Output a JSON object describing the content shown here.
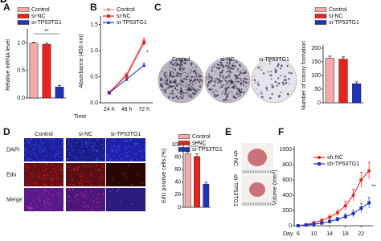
{
  "chart_data": [
    {
      "panel": "A",
      "type": "bar",
      "ylabel": "Relative mRNA level",
      "annotation": "**",
      "ylim": [
        0,
        1.2
      ],
      "yticks": [
        {
          "value": 0,
          "label": "0.0"
        },
        0.5,
        {
          "value": 1,
          "label": "1.0"
        }
      ],
      "series": [
        {
          "name": "Control",
          "color": "#f5a9a9",
          "values": [
            1.0
          ],
          "errors": [
            0.02
          ]
        },
        {
          "name": "si-NC",
          "color": "#e8231e",
          "values": [
            0.98
          ],
          "errors": [
            0.02
          ]
        },
        {
          "name": "si-TP53TG1",
          "color": "#2233bb",
          "values": [
            0.2
          ],
          "errors": [
            0.03
          ]
        }
      ]
    },
    {
      "panel": "B",
      "type": "line",
      "ylabel": "Absorbance (450 nm)",
      "xlabel": "Time",
      "annotation": "*",
      "categories": [
        "24 h",
        "48 h",
        "72 h"
      ],
      "ylim": [
        0,
        1.6
      ],
      "yticks": [
        {
          "value": 0,
          "label": "0.0"
        },
        0.5,
        {
          "value": 1,
          "label": "1.0"
        },
        1.5
      ],
      "series": [
        {
          "name": "Control",
          "color": "#f28b8b",
          "values": [
            0.2,
            0.55,
            1.2
          ],
          "errors": [
            0.02,
            0.03,
            0.05
          ]
        },
        {
          "name": "si-NC",
          "color": "#e8231e",
          "values": [
            0.2,
            0.52,
            1.15
          ],
          "errors": [
            0.02,
            0.03,
            0.05
          ]
        },
        {
          "name": "si-TP53TG1",
          "color": "#2233bb",
          "values": [
            0.19,
            0.45,
            0.72
          ],
          "errors": [
            0.02,
            0.03,
            0.04
          ]
        }
      ]
    },
    {
      "panel": "C",
      "type": "bar",
      "ylabel": "Number of colony formation",
      "ylim": [
        0,
        200
      ],
      "yticks": [
        0,
        50,
        100,
        150,
        200
      ],
      "series": [
        {
          "name": "Control",
          "color": "#f5a9a9",
          "values": [
            163
          ],
          "errors": [
            8
          ]
        },
        {
          "name": "si-NC",
          "color": "#e8231e",
          "values": [
            160
          ],
          "errors": [
            8
          ]
        },
        {
          "name": "si-TP53TG1",
          "color": "#2233bb",
          "values": [
            70
          ],
          "errors": [
            7
          ]
        }
      ]
    },
    {
      "panel": "D",
      "type": "bar",
      "ylabel": "EdU positive cells (%)",
      "annotation": "**",
      "ylim": [
        0,
        100
      ],
      "yticks": [
        0,
        20,
        40,
        60,
        80,
        100
      ],
      "series": [
        {
          "name": "Control",
          "color": "#f5a9a9",
          "values": [
            86
          ],
          "errors": [
            3
          ]
        },
        {
          "name": "si-NC",
          "color": "#e8231e",
          "values": [
            81
          ],
          "errors": [
            4
          ]
        },
        {
          "name": "si-TP53TG1",
          "color": "#2233bb",
          "values": [
            37
          ],
          "errors": [
            3
          ]
        }
      ]
    },
    {
      "panel": "F",
      "type": "line",
      "ylabel": "Volume (mm³)",
      "xlabel": "Day",
      "annotation": "**",
      "x": [
        6,
        8,
        10,
        12,
        14,
        16,
        18,
        20,
        22,
        24
      ],
      "xlim": [
        5,
        25
      ],
      "xticks": [
        6,
        10,
        14,
        18,
        22
      ],
      "ylim": [
        0,
        1000
      ],
      "yticks": [
        0,
        200,
        400,
        600,
        800,
        1000
      ],
      "series": [
        {
          "name": "sh-NC",
          "color": "#e8231e",
          "values": [
            0,
            15,
            40,
            70,
            110,
            170,
            260,
            400,
            600,
            720
          ],
          "errors": [
            5,
            10,
            15,
            20,
            30,
            40,
            60,
            80,
            100,
            110
          ]
        },
        {
          "name": "sh-TP53TG1",
          "color": "#2233bb",
          "values": [
            0,
            10,
            20,
            35,
            55,
            85,
            120,
            160,
            230,
            300
          ],
          "errors": [
            5,
            8,
            10,
            15,
            20,
            25,
            35,
            45,
            60,
            70
          ]
        }
      ]
    }
  ],
  "images": {
    "C": {
      "letter": "C",
      "labels": [
        "Control",
        "si-NC",
        "si-TP53TG1"
      ]
    },
    "D": {
      "letter": "D",
      "columns": [
        "Control",
        "si-NC",
        "si-TP53TG1"
      ],
      "rows": [
        "DAPI",
        "Edu",
        "Merge"
      ]
    },
    "E": {
      "letter": "E",
      "labels": [
        "sh-NC",
        "sh-TP53TG1"
      ]
    }
  }
}
